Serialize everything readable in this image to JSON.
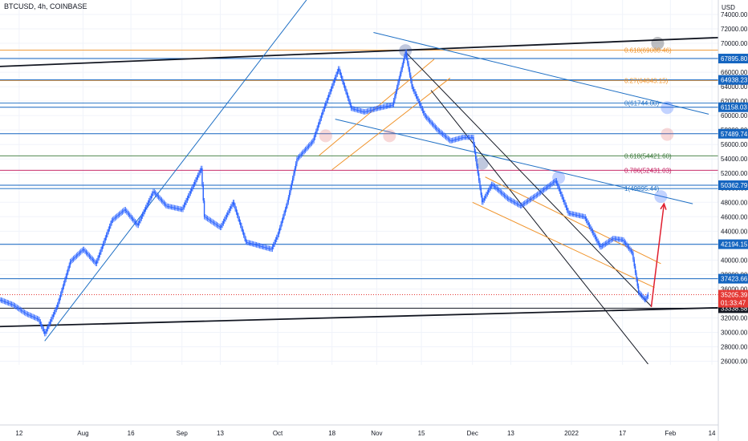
{
  "header": {
    "symbol": "BTCUSD, 4h, COINBASE",
    "currency": "USD"
  },
  "colors": {
    "background": "#ffffff",
    "candle": "#2962ff",
    "trendline_blue": "#1e6fc4",
    "fib_orange": "#f0932a",
    "fib_green": "#3c7a3c",
    "fib_pink": "#c2185b",
    "level_blue": "#1565c0",
    "price_red": "#e53935",
    "arrow_red": "#e01e2e",
    "black_line": "#131722"
  },
  "chart_data": {
    "type": "candlestick",
    "title": "BTCUSD, 4h, COINBASE",
    "ylim": [
      25500,
      76000
    ],
    "xlim": [
      "2021-07-06",
      "2022-02-16"
    ],
    "y_ticks": [
      26000,
      28000,
      30000,
      32000,
      34000,
      36000,
      38000,
      40000,
      42000,
      44000,
      46000,
      48000,
      50000,
      52000,
      54000,
      56000,
      58000,
      60000,
      62000,
      64000,
      66000,
      68000,
      70000,
      72000,
      74000
    ],
    "y_tick_labels": [
      "26000.00",
      "28000.00",
      "30000.00",
      "32000.00",
      "34000.00",
      "36000.00",
      "38000.00",
      "40000.00",
      "42000.00",
      "44000.00",
      "46000.00",
      "48000.00",
      "50000.00",
      "52000.00",
      "54000.00",
      "56000.00",
      "58000.00",
      "60000.00",
      "62000.00",
      "64000.00",
      "66000.00",
      "68000.00",
      "70000.00",
      "72000.00",
      "74000.00"
    ],
    "x_ticks": [
      {
        "date": "2021-07-12",
        "label": "12"
      },
      {
        "date": "2021-08-01",
        "label": "Aug"
      },
      {
        "date": "2021-08-16",
        "label": "16"
      },
      {
        "date": "2021-09-01",
        "label": "Sep"
      },
      {
        "date": "2021-09-13",
        "label": "13"
      },
      {
        "date": "2021-10-01",
        "label": "Oct"
      },
      {
        "date": "2021-10-18",
        "label": "18"
      },
      {
        "date": "2021-11-01",
        "label": "Nov"
      },
      {
        "date": "2021-11-15",
        "label": "15"
      },
      {
        "date": "2021-12-01",
        "label": "Dec"
      },
      {
        "date": "2021-12-13",
        "label": "13"
      },
      {
        "date": "2022-01-01",
        "label": "2022"
      },
      {
        "date": "2022-01-17",
        "label": "17"
      },
      {
        "date": "2022-02-01",
        "label": "Feb"
      },
      {
        "date": "2022-02-14",
        "label": "14"
      }
    ],
    "price_path": [
      [
        "2021-07-06",
        34500
      ],
      [
        "2021-07-10",
        33800
      ],
      [
        "2021-07-14",
        32600
      ],
      [
        "2021-07-18",
        31800
      ],
      [
        "2021-07-20",
        29800
      ],
      [
        "2021-07-24",
        33800
      ],
      [
        "2021-07-28",
        39800
      ],
      [
        "2021-08-01",
        41500
      ],
      [
        "2021-08-05",
        39500
      ],
      [
        "2021-08-10",
        45500
      ],
      [
        "2021-08-14",
        47000
      ],
      [
        "2021-08-18",
        44800
      ],
      [
        "2021-08-23",
        49500
      ],
      [
        "2021-08-27",
        47500
      ],
      [
        "2021-09-01",
        47000
      ],
      [
        "2021-09-07",
        52700
      ],
      [
        "2021-09-08",
        46000
      ],
      [
        "2021-09-13",
        44500
      ],
      [
        "2021-09-17",
        48000
      ],
      [
        "2021-09-21",
        42500
      ],
      [
        "2021-09-25",
        42000
      ],
      [
        "2021-09-29",
        41500
      ],
      [
        "2021-10-01",
        43500
      ],
      [
        "2021-10-04",
        48000
      ],
      [
        "2021-10-07",
        54000
      ],
      [
        "2021-10-12",
        56500
      ],
      [
        "2021-10-15",
        60500
      ],
      [
        "2021-10-20",
        66500
      ],
      [
        "2021-10-24",
        61000
      ],
      [
        "2021-10-28",
        60500
      ],
      [
        "2021-11-01",
        61000
      ],
      [
        "2021-11-06",
        61500
      ],
      [
        "2021-11-10",
        68800
      ],
      [
        "2021-11-12",
        64000
      ],
      [
        "2021-11-16",
        60000
      ],
      [
        "2021-11-20",
        58000
      ],
      [
        "2021-11-24",
        56500
      ],
      [
        "2021-11-28",
        57000
      ],
      [
        "2021-12-01",
        57000
      ],
      [
        "2021-12-04",
        48000
      ],
      [
        "2021-12-07",
        50500
      ],
      [
        "2021-12-12",
        48500
      ],
      [
        "2021-12-16",
        47500
      ],
      [
        "2021-12-21",
        49000
      ],
      [
        "2021-12-27",
        51000
      ],
      [
        "2021-12-31",
        46500
      ],
      [
        "2022-01-05",
        46000
      ],
      [
        "2022-01-10",
        41800
      ],
      [
        "2022-01-14",
        43000
      ],
      [
        "2022-01-17",
        42800
      ],
      [
        "2022-01-20",
        41000
      ],
      [
        "2022-01-22",
        35500
      ],
      [
        "2022-01-24",
        34500
      ],
      [
        "2022-01-25",
        35205
      ]
    ],
    "horizontal_levels": [
      {
        "price": 67895.8,
        "label": "67895.80",
        "color": "#1565c0"
      },
      {
        "price": 64938.23,
        "label": "64938.23",
        "color": "#1565c0"
      },
      {
        "price": 61158.03,
        "label": "61158.03",
        "color": "#1565c0"
      },
      {
        "price": 57489.74,
        "label": "57489.74",
        "color": "#1565c0"
      },
      {
        "price": 50362.79,
        "label": "50362.79",
        "color": "#1565c0"
      },
      {
        "price": 42194.15,
        "label": "42194.15",
        "color": "#1565c0"
      },
      {
        "price": 37423.66,
        "label": "37423.66",
        "color": "#1565c0"
      },
      {
        "price": 33338.58,
        "label": "33338.58",
        "color": "#131722"
      }
    ],
    "current_price": {
      "price": 35205.39,
      "label": "35205.39",
      "countdown": "01:33:47",
      "color": "#e53935"
    },
    "fib_levels": [
      {
        "price": 69060.46,
        "label": "0.618(69060.46)",
        "color": "#f0932a"
      },
      {
        "price": 64843.15,
        "label": "0.27(64843.15)",
        "color": "#f0932a"
      },
      {
        "price": 61744.0,
        "label": "0(61744.00)",
        "color": "#1e6fc4"
      },
      {
        "price": 54421.6,
        "label": "0.618(54421.60)",
        "color": "#3c7a3c"
      },
      {
        "price": 52431.03,
        "label": "0.786(52431.03)",
        "color": "#c2185b"
      },
      {
        "price": 49895.44,
        "label": "1(49895.44)",
        "color": "#1e6fc4"
      }
    ],
    "trend_lines": [
      {
        "name": "long-support",
        "color": "#131722",
        "points": [
          [
            "2021-07-06",
            30800
          ],
          [
            "2022-02-16",
            33400
          ]
        ]
      },
      {
        "name": "long-resistance",
        "color": "#131722",
        "points": [
          [
            "2021-07-06",
            66800
          ],
          [
            "2022-02-16",
            70800
          ]
        ]
      },
      {
        "name": "uptrend",
        "color": "#1e6fc4",
        "points": [
          [
            "2021-07-20",
            28800
          ],
          [
            "2021-10-10",
            76000
          ]
        ]
      },
      {
        "name": "upper-down-channel",
        "color": "#1e6fc4",
        "points": [
          [
            "2021-10-31",
            71500
          ],
          [
            "2022-02-13",
            60200
          ]
        ]
      },
      {
        "name": "mid-down-channel",
        "color": "#1e6fc4",
        "points": [
          [
            "2021-10-19",
            59500
          ],
          [
            "2022-02-08",
            47800
          ]
        ]
      },
      {
        "name": "orange-rising-upper",
        "color": "#f0932a",
        "points": [
          [
            "2021-10-14",
            54500
          ],
          [
            "2021-11-19",
            67800
          ]
        ]
      },
      {
        "name": "orange-rising-lower",
        "color": "#f0932a",
        "points": [
          [
            "2021-10-18",
            52500
          ],
          [
            "2021-11-24",
            65200
          ]
        ]
      },
      {
        "name": "black-falling-1",
        "color": "#131722",
        "points": [
          [
            "2021-11-10",
            68800
          ],
          [
            "2022-01-26",
            33600
          ]
        ]
      },
      {
        "name": "black-falling-2",
        "color": "#131722",
        "points": [
          [
            "2021-11-18",
            63500
          ],
          [
            "2022-01-25",
            25600
          ]
        ]
      },
      {
        "name": "orange-falling-upper",
        "color": "#f0932a",
        "points": [
          [
            "2021-12-05",
            51500
          ],
          [
            "2022-01-29",
            39500
          ]
        ]
      },
      {
        "name": "orange-falling-lower",
        "color": "#f0932a",
        "points": [
          [
            "2021-12-01",
            48000
          ],
          [
            "2022-01-27",
            36200
          ]
        ]
      }
    ],
    "projection_arrow": {
      "from": [
        "2022-01-26",
        33500
      ],
      "to": [
        "2022-01-30",
        47800
      ],
      "color": "#e01e2e"
    },
    "markers": [
      {
        "date": "2021-11-10",
        "price": 69000,
        "color": "#1e3a8a"
      },
      {
        "date": "2022-01-28",
        "price": 70000,
        "color": "#131722"
      },
      {
        "date": "2022-01-31",
        "price": 61100,
        "color": "#2962ff"
      },
      {
        "date": "2021-12-04",
        "price": 53400,
        "color": "#1e3a8a"
      },
      {
        "date": "2021-10-16",
        "price": 57200,
        "color": "#e57373"
      },
      {
        "date": "2021-11-05",
        "price": 57200,
        "color": "#e57373"
      },
      {
        "date": "2022-01-31",
        "price": 57400,
        "color": "#e57373"
      },
      {
        "date": "2021-12-28",
        "price": 51400,
        "color": "#2962ff"
      },
      {
        "date": "2022-01-29",
        "price": 48800,
        "color": "#2962ff"
      }
    ]
  }
}
